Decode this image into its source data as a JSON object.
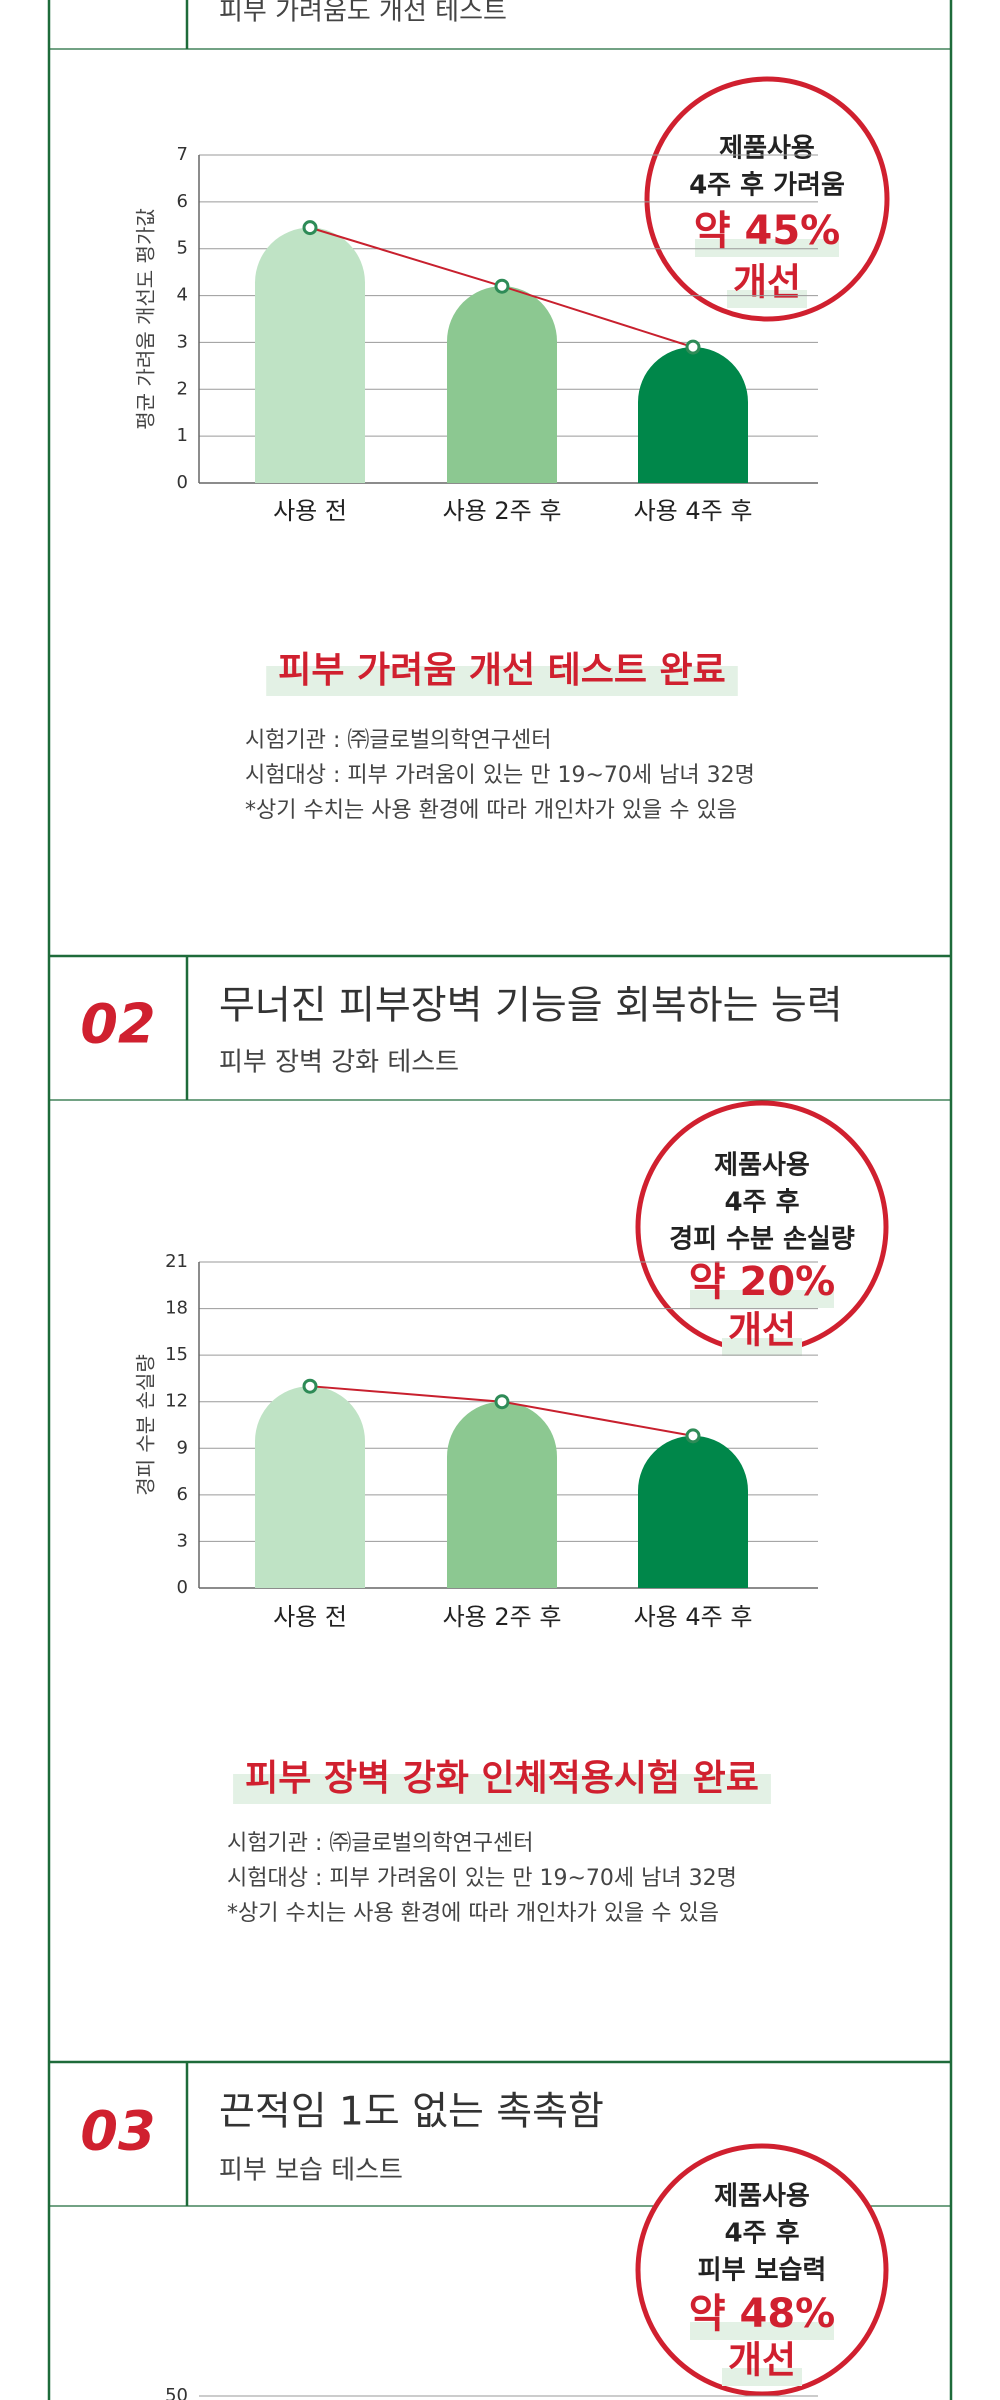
{
  "sections": [
    {
      "subtitle": "피부 가려움도 개선 테스트",
      "badge": {
        "lines": [
          "제품사용",
          "4주 후 가려움"
        ],
        "result": "약 45%",
        "result_word": "개선"
      },
      "headline": "피부 가려움 개선 테스트 완료",
      "notes": [
        "시험기관 : ㈜글로벌의학연구센터",
        "시험대상 : 피부 가려움이 있는 만 19~70세 남녀 32명",
        "*상기 수치는 사용 환경에 따라 개인차가 있을 수 있음"
      ]
    },
    {
      "number": "02",
      "title": "무너진 피부장벽 기능을 회복하는 능력",
      "subtitle": "피부 장벽 강화 테스트",
      "badge": {
        "lines": [
          "제품사용",
          "4주 후",
          "경피 수분 손실량"
        ],
        "result": "약 20%",
        "result_word": "개선"
      },
      "headline": "피부 장벽 강화 인체적용시험 완료",
      "notes": [
        "시험기관 : ㈜글로벌의학연구센터",
        "시험대상 : 피부 가려움이 있는 만 19~70세 남녀 32명",
        "*상기 수치는 사용 환경에 따라 개인차가 있을 수 있음"
      ]
    },
    {
      "number": "03",
      "title": "끈적임 1도 없는 촉촉함",
      "subtitle": "피부 보습 테스트",
      "badge": {
        "lines": [
          "제품사용",
          "4주 후",
          "피부 보습력"
        ],
        "result": "약 48%",
        "result_word": "개선"
      },
      "axis_tick": "50"
    }
  ],
  "chart_data": [
    {
      "type": "bar",
      "y_label": "평균 가려움 개선도 평가값",
      "categories": [
        "사용 전",
        "사용 2주 후",
        "사용 4주 후"
      ],
      "values": [
        5.45,
        4.2,
        2.9
      ],
      "colors": [
        "#bfe3c5",
        "#8cc891",
        "#00874a"
      ],
      "line_color": "#c8202e",
      "ylim": [
        0,
        7
      ],
      "yticks": [
        0,
        1,
        2,
        3,
        4,
        5,
        6,
        7
      ],
      "grid": true
    },
    {
      "type": "bar",
      "y_label": "경피 수분 손실량",
      "categories": [
        "사용 전",
        "사용 2주 후",
        "사용 4주 후"
      ],
      "values": [
        13,
        12,
        9.8
      ],
      "colors": [
        "#bfe3c5",
        "#8cc891",
        "#00874a"
      ],
      "line_color": "#c8202e",
      "ylim": [
        0,
        21
      ],
      "yticks": [
        0,
        3,
        6,
        9,
        12,
        15,
        18,
        21
      ],
      "grid": true
    }
  ]
}
